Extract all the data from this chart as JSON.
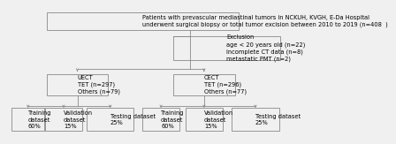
{
  "bg_color": "#f0f0f0",
  "box_face_color": "#f0f0f0",
  "box_edge_color": "#888888",
  "line_color": "#888888",
  "text_color": "#000000",
  "title_text": "Patients with prevascular mediastinal tumors in NCKUH, KVGH, E-Da Hospital\nunderwent surgical biopsy or total tumor excision between 2010 to 2019 (n=408  )",
  "exclusion_text": "Exclusion\nage < 20 years old (n=22)\nincomplete CT data (n=8)\nmetastatic PMT (n=2)",
  "uect_text": "UECT\nTET (n=297)\nOthers (n=79)",
  "cect_text": "CECT\nTET (n=296)\nOthers (n=77)",
  "leaf_texts": [
    "Training\ndataset\n60%",
    "Validation\ndataset\n15%",
    "Testing dataset\n25%",
    "Training\ndataset\n60%",
    "Validation\ndataset\n15%",
    "Testing dataset\n25%"
  ],
  "font_size": 4.8,
  "lw": 0.6
}
